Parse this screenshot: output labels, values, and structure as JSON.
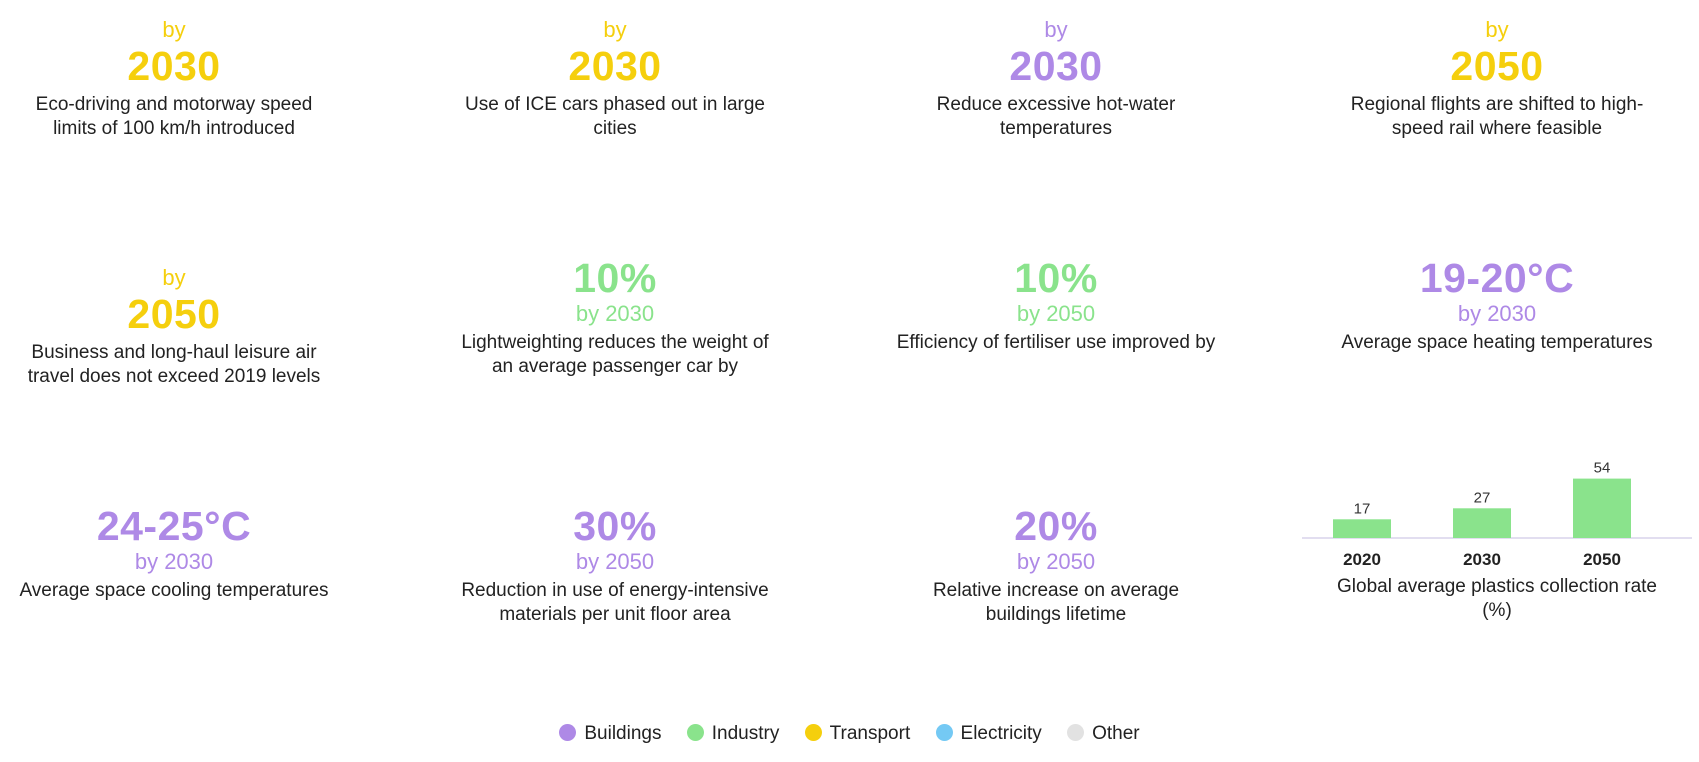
{
  "colors": {
    "buildings": "#ae89e6",
    "industry": "#8ae38c",
    "transport": "#f5cf0d",
    "electricity": "#74c9f4",
    "other": "#e2e2e2"
  },
  "cards": [
    {
      "pre": "by",
      "big": "2030",
      "sub": "",
      "desc": "Eco-driving and motorway speed limits of 100 km/h introduced",
      "sector": "transport"
    },
    {
      "pre": "by",
      "big": "2030",
      "sub": "",
      "desc": "Use of ICE cars phased out in large cities",
      "sector": "transport"
    },
    {
      "pre": "by",
      "big": "2030",
      "sub": "",
      "desc": "Reduce excessive hot-water temperatures",
      "sector": "buildings"
    },
    {
      "pre": "by",
      "big": "2050",
      "sub": "",
      "desc": "Regional flights are shifted to high-speed rail where feasible",
      "sector": "transport"
    },
    {
      "pre": "by",
      "big": "2050",
      "sub": "",
      "desc": "Business and long-haul leisure air travel does not exceed 2019 levels",
      "sector": "transport"
    },
    {
      "pre": "",
      "big": "10%",
      "sub": "by 2030",
      "desc": "Lightweighting reduces the weight of an average passenger car by",
      "sector": "industry"
    },
    {
      "pre": "",
      "big": "10%",
      "sub": "by 2050",
      "desc": "Efficiency of fertiliser use improved by",
      "sector": "industry"
    },
    {
      "pre": "",
      "big": "19-20°C",
      "sub": "by 2030",
      "desc": "Average space heating temperatures",
      "sector": "buildings"
    },
    {
      "pre": "",
      "big": "24-25°C",
      "sub": "by 2030",
      "desc": "Average space cooling temperatures",
      "sector": "buildings"
    },
    {
      "pre": "",
      "big": "30%",
      "sub": "by 2050",
      "desc": "Reduction in use of energy-intensive materials per unit floor area",
      "sector": "buildings"
    },
    {
      "pre": "",
      "big": "20%",
      "sub": "by 2050",
      "desc": "Relative increase on average buildings lifetime",
      "sector": "buildings"
    }
  ],
  "chart_data": {
    "type": "bar",
    "categories": [
      "2020",
      "2030",
      "2050"
    ],
    "values": [
      17,
      27,
      54
    ],
    "title": "Global average plastics collection rate (%)",
    "xlabel": "",
    "ylabel": "",
    "ylim": [
      0,
      60
    ],
    "grid": false,
    "bar_color": "#8ae38c"
  },
  "legend": [
    {
      "label": "Buildings",
      "color": "#ae89e6"
    },
    {
      "label": "Industry",
      "color": "#8ae38c"
    },
    {
      "label": "Transport",
      "color": "#f5cf0d"
    },
    {
      "label": "Electricity",
      "color": "#74c9f4"
    },
    {
      "label": "Other",
      "color": "#e2e2e2"
    }
  ]
}
